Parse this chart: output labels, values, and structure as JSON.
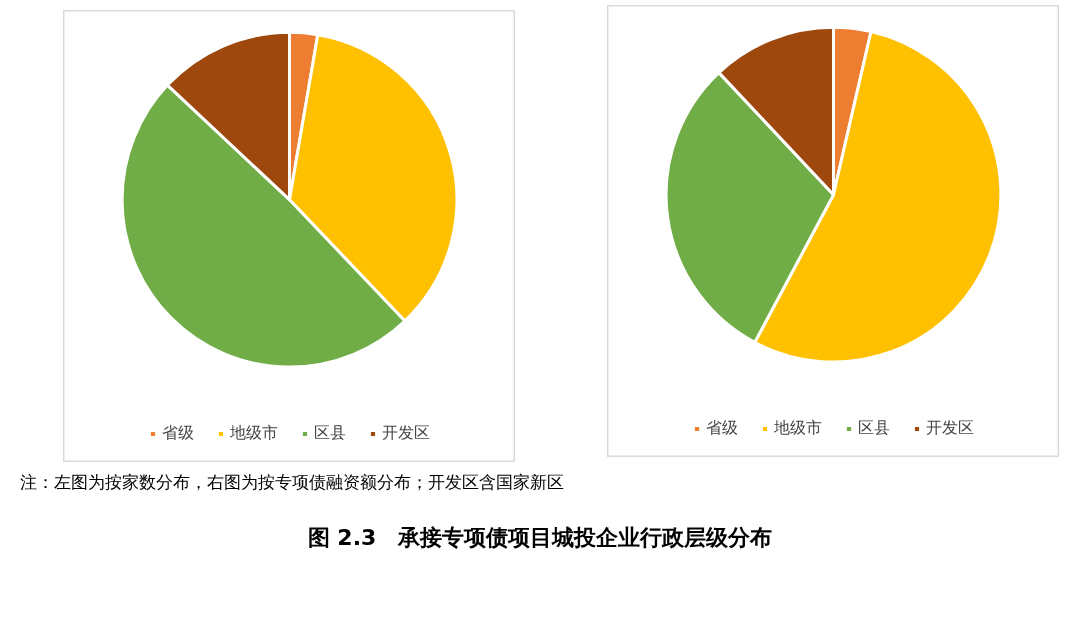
{
  "chart_data": [
    {
      "type": "pie",
      "title": "图 2.3　承接专项债项目城投企业行政层级分布",
      "annotations": [
        "注：左图为按家数分布，右图为按专项债融资额分布；开发区含国家新区"
      ],
      "categories": [
        "省级",
        "地级市",
        "区县",
        "开发区"
      ],
      "values": [
        2.7,
        35.2,
        49.1,
        13.0
      ],
      "colors": [
        "#ed7d31",
        "#ffc000",
        "#70ad47",
        "#9e480e"
      ],
      "legend": "bottom"
    },
    {
      "type": "pie",
      "categories": [
        "省级",
        "地级市",
        "区县",
        "开发区"
      ],
      "values": [
        3.6,
        54.2,
        30.2,
        12.0
      ],
      "colors": [
        "#ed7d31",
        "#ffc000",
        "#70ad47",
        "#9e480e"
      ],
      "legend": "bottom"
    }
  ]
}
